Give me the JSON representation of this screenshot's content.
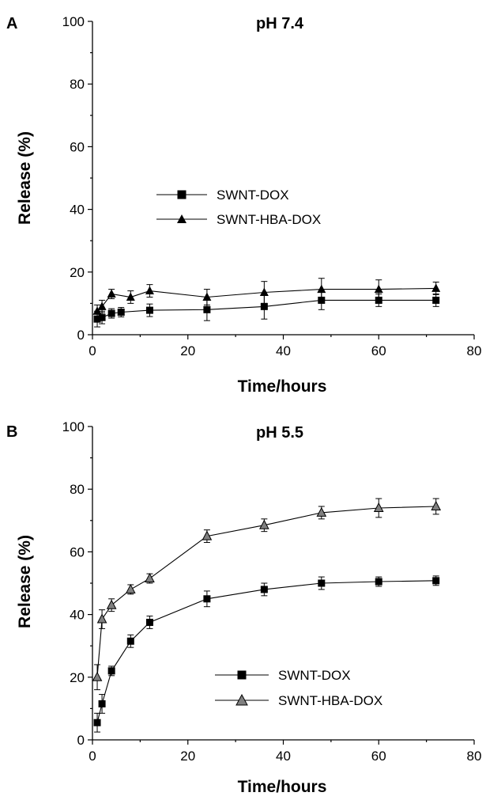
{
  "chart_data": [
    {
      "panel": "A",
      "type": "line",
      "title": "pH 7.4",
      "xlabel": "Time/hours",
      "ylabel": "Release (%)",
      "xlim": [
        0,
        80
      ],
      "ylim": [
        0,
        100
      ],
      "xticks": [
        0,
        20,
        40,
        60,
        80
      ],
      "yticks": [
        0,
        20,
        40,
        60,
        80,
        100
      ],
      "grid": false,
      "legend_position": "center-left",
      "series": [
        {
          "name": "SWNT-DOX",
          "marker": "square",
          "color": "#000000",
          "x": [
            1,
            2,
            4,
            6,
            12,
            24,
            36,
            48,
            60,
            72
          ],
          "y": [
            5,
            5.5,
            6.8,
            7.2,
            7.8,
            8,
            9,
            11,
            11,
            11
          ],
          "err": [
            2.5,
            2,
            1.5,
            1.5,
            2,
            3.5,
            4,
            3,
            2,
            2
          ]
        },
        {
          "name": "SWNT-HBA-DOX",
          "marker": "triangle",
          "color": "#000000",
          "x": [
            1,
            2,
            4,
            8,
            12,
            24,
            36,
            48,
            60,
            72
          ],
          "y": [
            7.5,
            9,
            13,
            12,
            14,
            12,
            13.5,
            14.5,
            14.5,
            14.8
          ],
          "err": [
            2,
            2,
            1.5,
            2,
            2,
            2.5,
            3.5,
            3.5,
            3,
            2
          ]
        }
      ]
    },
    {
      "panel": "B",
      "type": "line",
      "title": "pH 5.5",
      "xlabel": "Time/hours",
      "ylabel": "Release (%)",
      "xlim": [
        0,
        80
      ],
      "ylim": [
        0,
        100
      ],
      "xticks": [
        0,
        20,
        40,
        60,
        80
      ],
      "yticks": [
        0,
        20,
        40,
        60,
        80,
        100
      ],
      "grid": false,
      "legend_position": "center-right",
      "series": [
        {
          "name": "SWNT-DOX",
          "marker": "square",
          "color": "#000000",
          "x": [
            1,
            2,
            4,
            8,
            12,
            24,
            36,
            48,
            60,
            72
          ],
          "y": [
            5.5,
            11.5,
            22,
            31.5,
            37.5,
            45,
            48,
            50,
            50.5,
            50.8
          ],
          "err": [
            3,
            3,
            1.5,
            2,
            2,
            2.5,
            2,
            2,
            1.5,
            1.5
          ]
        },
        {
          "name": "SWNT-HBA-DOX",
          "marker": "triangle",
          "color": "#808080",
          "x": [
            1,
            2,
            4,
            8,
            12,
            24,
            36,
            48,
            60,
            72
          ],
          "y": [
            20,
            38.5,
            43,
            48,
            51.5,
            65,
            68.5,
            72.5,
            74,
            74.5
          ],
          "err": [
            4,
            3,
            2,
            1.5,
            1.5,
            2,
            2,
            2,
            3,
            2.5
          ]
        }
      ]
    }
  ]
}
